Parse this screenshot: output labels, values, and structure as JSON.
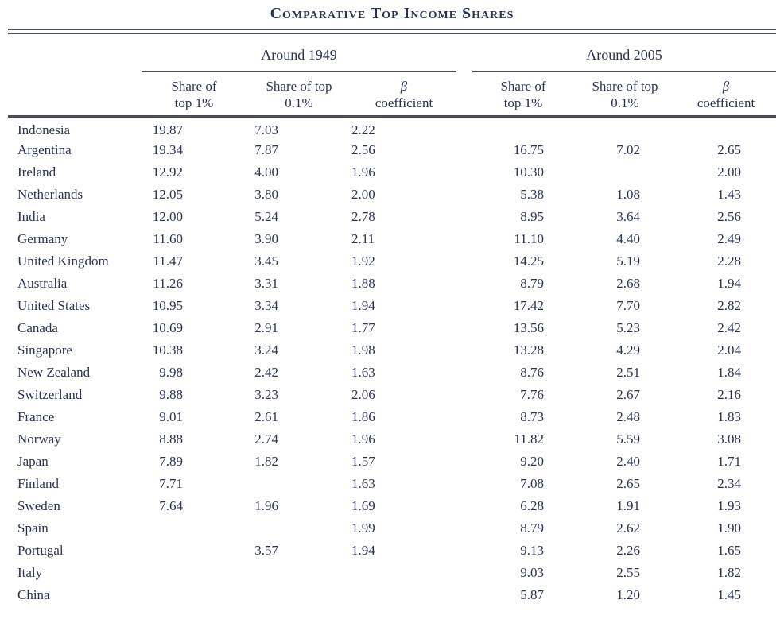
{
  "title": "Comparative Top Income Shares",
  "colors": {
    "ink": "#2a3551",
    "rule": "#4a4f55",
    "background": "#ffffff"
  },
  "table": {
    "group_headers": [
      "Around 1949",
      "Around 2005"
    ],
    "columns": [
      {
        "line1": "Share of",
        "line2": "top 1%"
      },
      {
        "line1": "Share of top",
        "line2": "0.1%"
      },
      {
        "line1": "β",
        "line2": "coefficient"
      },
      {
        "line1": "Share of",
        "line2": "top 1%"
      },
      {
        "line1": "Share of top",
        "line2": "0.1%"
      },
      {
        "line1": "β",
        "line2": "coefficient"
      }
    ],
    "rows": [
      {
        "country": "Indonesia",
        "y1949": [
          "19.87",
          "7.03",
          "2.22"
        ],
        "y2005": [
          "",
          "",
          ""
        ]
      },
      {
        "country": "Argentina",
        "y1949": [
          "19.34",
          "7.87",
          "2.56"
        ],
        "y2005": [
          "16.75",
          "7.02",
          "2.65"
        ]
      },
      {
        "country": "Ireland",
        "y1949": [
          "12.92",
          "4.00",
          "1.96"
        ],
        "y2005": [
          "10.30",
          "",
          "2.00"
        ]
      },
      {
        "country": "Netherlands",
        "y1949": [
          "12.05",
          "3.80",
          "2.00"
        ],
        "y2005": [
          "5.38",
          "1.08",
          "1.43"
        ]
      },
      {
        "country": "India",
        "y1949": [
          "12.00",
          "5.24",
          "2.78"
        ],
        "y2005": [
          "8.95",
          "3.64",
          "2.56"
        ]
      },
      {
        "country": "Germany",
        "y1949": [
          "11.60",
          "3.90",
          "2.11"
        ],
        "y2005": [
          "11.10",
          "4.40",
          "2.49"
        ]
      },
      {
        "country": "United Kingdom",
        "y1949": [
          "11.47",
          "3.45",
          "1.92"
        ],
        "y2005": [
          "14.25",
          "5.19",
          "2.28"
        ]
      },
      {
        "country": "Australia",
        "y1949": [
          "11.26",
          "3.31",
          "1.88"
        ],
        "y2005": [
          "8.79",
          "2.68",
          "1.94"
        ]
      },
      {
        "country": "United States",
        "y1949": [
          "10.95",
          "3.34",
          "1.94"
        ],
        "y2005": [
          "17.42",
          "7.70",
          "2.82"
        ]
      },
      {
        "country": "Canada",
        "y1949": [
          "10.69",
          "2.91",
          "1.77"
        ],
        "y2005": [
          "13.56",
          "5.23",
          "2.42"
        ]
      },
      {
        "country": "Singapore",
        "y1949": [
          "10.38",
          "3.24",
          "1.98"
        ],
        "y2005": [
          "13.28",
          "4.29",
          "2.04"
        ]
      },
      {
        "country": "New Zealand",
        "y1949": [
          "9.98",
          "2.42",
          "1.63"
        ],
        "y2005": [
          "8.76",
          "2.51",
          "1.84"
        ]
      },
      {
        "country": "Switzerland",
        "y1949": [
          "9.88",
          "3.23",
          "2.06"
        ],
        "y2005": [
          "7.76",
          "2.67",
          "2.16"
        ]
      },
      {
        "country": "France",
        "y1949": [
          "9.01",
          "2.61",
          "1.86"
        ],
        "y2005": [
          "8.73",
          "2.48",
          "1.83"
        ]
      },
      {
        "country": "Norway",
        "y1949": [
          "8.88",
          "2.74",
          "1.96"
        ],
        "y2005": [
          "11.82",
          "5.59",
          "3.08"
        ]
      },
      {
        "country": "Japan",
        "y1949": [
          "7.89",
          "1.82",
          "1.57"
        ],
        "y2005": [
          "9.20",
          "2.40",
          "1.71"
        ]
      },
      {
        "country": "Finland",
        "y1949": [
          "7.71",
          "",
          "1.63"
        ],
        "y2005": [
          "7.08",
          "2.65",
          "2.34"
        ]
      },
      {
        "country": "Sweden",
        "y1949": [
          "7.64",
          "1.96",
          "1.69"
        ],
        "y2005": [
          "6.28",
          "1.91",
          "1.93"
        ]
      },
      {
        "country": "Spain",
        "y1949": [
          "",
          "",
          "1.99"
        ],
        "y2005": [
          "8.79",
          "2.62",
          "1.90"
        ]
      },
      {
        "country": "Portugal",
        "y1949": [
          "",
          "3.57",
          "1.94"
        ],
        "y2005": [
          "9.13",
          "2.26",
          "1.65"
        ]
      },
      {
        "country": "Italy",
        "y1949": [
          "",
          "",
          ""
        ],
        "y2005": [
          "9.03",
          "2.55",
          "1.82"
        ]
      },
      {
        "country": "China",
        "y1949": [
          "",
          "",
          ""
        ],
        "y2005": [
          "5.87",
          "1.20",
          "1.45"
        ]
      }
    ]
  }
}
